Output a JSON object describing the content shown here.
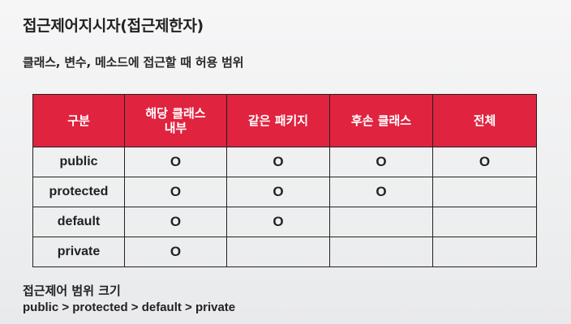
{
  "title": "접근제어지시자(접근제한자)",
  "subtitle": "클래스, 변수, 메소드에 접근할 때 허용 범위",
  "table": {
    "headers": [
      "구분",
      "해당 클래스\n내부",
      "같은 패키지",
      "후손 클래스",
      "전체"
    ],
    "rows": [
      {
        "label": "public",
        "cells": [
          "O",
          "O",
          "O",
          "O"
        ]
      },
      {
        "label": "protected",
        "cells": [
          "O",
          "O",
          "O",
          ""
        ]
      },
      {
        "label": "default",
        "cells": [
          "O",
          "O",
          "",
          ""
        ]
      },
      {
        "label": "private",
        "cells": [
          "O",
          "",
          "",
          ""
        ]
      }
    ]
  },
  "footer": {
    "title": "접근제어 범위 크기",
    "order": "public > protected > default > private"
  },
  "colors": {
    "header_bg": "#e0233f",
    "header_text": "#ffffff",
    "border": "#222222"
  }
}
